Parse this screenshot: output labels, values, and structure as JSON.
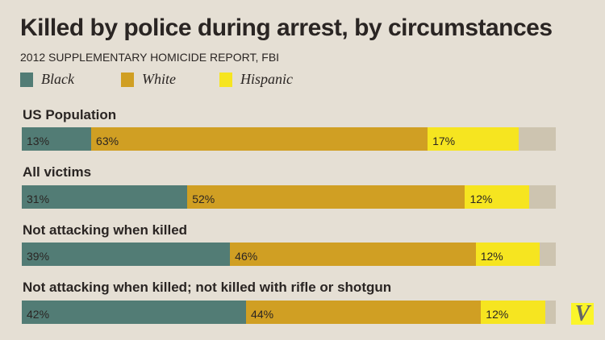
{
  "chart_data": {
    "type": "stacked-bar",
    "title": "Killed by police during arrest, by circumstances",
    "subtitle": "2012 SUPPLEMENTARY HOMICIDE REPORT, FBI",
    "categories": [
      "US Population",
      "All victims",
      "Not attacking when killed",
      "Not attacking when killed; not killed with rifle or shotgun"
    ],
    "series": [
      {
        "name": "Black",
        "color": "#527c75",
        "values": [
          13,
          31,
          39,
          42
        ]
      },
      {
        "name": "White",
        "color": "#d09f23",
        "values": [
          63,
          52,
          46,
          44
        ]
      },
      {
        "name": "Hispanic",
        "color": "#f6e520",
        "values": [
          17,
          12,
          12,
          12
        ]
      }
    ],
    "remainder_color": "#cdc4b0",
    "xlim": [
      0,
      100
    ],
    "legend": "top-left"
  },
  "logo": "V"
}
